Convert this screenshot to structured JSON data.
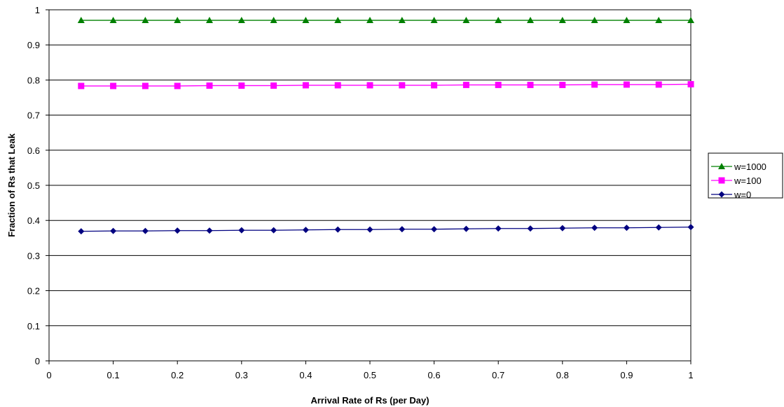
{
  "chart_data": {
    "type": "line",
    "title": "",
    "xlabel": "Arrival Rate of Rs (per Day)",
    "ylabel": "Fraction of Rs that Leak",
    "xlim": [
      0,
      1
    ],
    "ylim": [
      0,
      1
    ],
    "x_ticks": [
      "0",
      "0.1",
      "0.2",
      "0.3",
      "0.4",
      "0.5",
      "0.6",
      "0.7",
      "0.8",
      "0.9",
      "1"
    ],
    "y_ticks": [
      "0",
      "0.1",
      "0.2",
      "0.3",
      "0.4",
      "0.5",
      "0.6",
      "0.7",
      "0.8",
      "0.9",
      "1"
    ],
    "grid": "horizontal",
    "legend_position": "right",
    "x": [
      0.05,
      0.1,
      0.15,
      0.2,
      0.25,
      0.3,
      0.35,
      0.4,
      0.45,
      0.5,
      0.55,
      0.6,
      0.65,
      0.7,
      0.75,
      0.8,
      0.85,
      0.9,
      0.95,
      1.0
    ],
    "series": [
      {
        "name": "w=1000",
        "color": "#008000",
        "marker": "triangle",
        "values": [
          0.97,
          0.97,
          0.97,
          0.97,
          0.97,
          0.97,
          0.97,
          0.97,
          0.97,
          0.97,
          0.97,
          0.97,
          0.97,
          0.97,
          0.97,
          0.97,
          0.97,
          0.97,
          0.97,
          0.97
        ]
      },
      {
        "name": "w=100",
        "color": "#ff00ff",
        "marker": "square",
        "values": [
          0.783,
          0.783,
          0.783,
          0.783,
          0.784,
          0.784,
          0.784,
          0.785,
          0.785,
          0.785,
          0.785,
          0.785,
          0.786,
          0.786,
          0.786,
          0.786,
          0.787,
          0.787,
          0.787,
          0.788
        ]
      },
      {
        "name": "w=0",
        "color": "#000080",
        "marker": "diamond",
        "values": [
          0.369,
          0.37,
          0.37,
          0.371,
          0.371,
          0.372,
          0.372,
          0.373,
          0.374,
          0.374,
          0.375,
          0.375,
          0.376,
          0.377,
          0.377,
          0.378,
          0.379,
          0.379,
          0.38,
          0.381
        ]
      }
    ]
  }
}
